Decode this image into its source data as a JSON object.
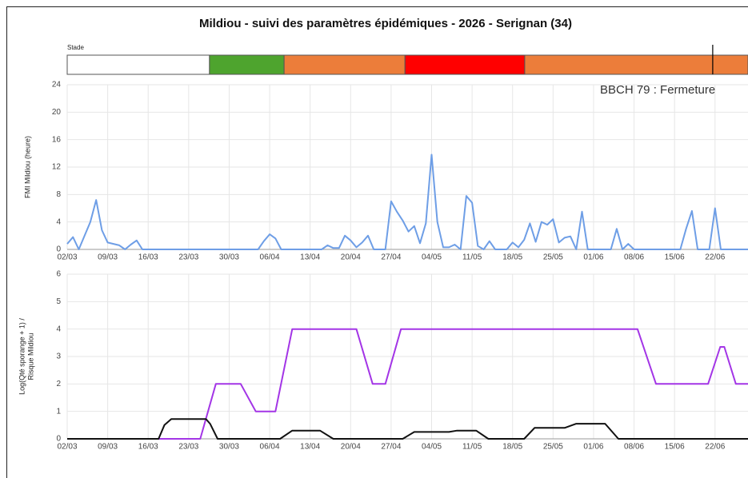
{
  "chart_data": [
    {
      "type": "stage",
      "title": "Mildiou - suivi des paramètres épidémiques - 2026 - Serignan (34)",
      "label": "Stade",
      "xlim": [
        0,
        117.7
      ],
      "segments": [
        {
          "start": 0,
          "end": 24.6,
          "color": "#ffffff"
        },
        {
          "start": 24.6,
          "end": 37.5,
          "color": "#4ea42e"
        },
        {
          "start": 37.5,
          "end": 58.4,
          "color": "#ec7d3a"
        },
        {
          "start": 58.4,
          "end": 79.1,
          "color": "#ff0000"
        },
        {
          "start": 79.1,
          "end": 117.7,
          "color": "#ec7d3a"
        }
      ],
      "marker": 111.6,
      "annotation": "BBCH 79 : Fermeture"
    },
    {
      "type": "line",
      "ylabel": "FMI Mildiou (heure)",
      "xlim": [
        0,
        117.7
      ],
      "ylim": [
        0,
        24
      ],
      "yticks": [
        0,
        4,
        8,
        12,
        16,
        20,
        24
      ],
      "grid": true,
      "xticks": [
        {
          "value": 0,
          "label": "02/03"
        },
        {
          "value": 7,
          "label": "09/03"
        },
        {
          "value": 14,
          "label": "16/03"
        },
        {
          "value": 21,
          "label": "23/03"
        },
        {
          "value": 28,
          "label": "30/03"
        },
        {
          "value": 35,
          "label": "06/04"
        },
        {
          "value": 42,
          "label": "13/04"
        },
        {
          "value": 49,
          "label": "20/04"
        },
        {
          "value": 56,
          "label": "27/04"
        },
        {
          "value": 63,
          "label": "04/05"
        },
        {
          "value": 70,
          "label": "11/05"
        },
        {
          "value": 77,
          "label": "18/05"
        },
        {
          "value": 84,
          "label": "25/05"
        },
        {
          "value": 91,
          "label": "01/06"
        },
        {
          "value": 98,
          "label": "08/06"
        },
        {
          "value": 105,
          "label": "15/06"
        },
        {
          "value": 112,
          "label": "22/06"
        }
      ],
      "series": [
        {
          "color": "#6e9ee6",
          "x": [
            0,
            1,
            2,
            4,
            5,
            6,
            7,
            8,
            9,
            10,
            11,
            12,
            13,
            33,
            34,
            35,
            36,
            37,
            44,
            45,
            46,
            47,
            48,
            49,
            50,
            51,
            52,
            53,
            55,
            56,
            57,
            58,
            59,
            60,
            61,
            62,
            63,
            64,
            65,
            66,
            67,
            68,
            69,
            70,
            71,
            72,
            73,
            74,
            76,
            77,
            78,
            79,
            80,
            81,
            82,
            83,
            84,
            85,
            86,
            87,
            88,
            89,
            90,
            94,
            95,
            96,
            97,
            98,
            106,
            107,
            108,
            109,
            111,
            112,
            113,
            117.7
          ],
          "values": [
            0.8,
            1.8,
            0,
            4,
            7.2,
            2.8,
            1,
            0.8,
            0.6,
            0,
            0.7,
            1.3,
            0,
            0,
            1.2,
            2.2,
            1.6,
            0,
            0,
            0.6,
            0.2,
            0.2,
            2,
            1.3,
            0.3,
            1,
            2,
            0,
            0,
            7,
            5.5,
            4.2,
            2.6,
            3.4,
            0.9,
            3.8,
            13.8,
            4,
            0.3,
            0.3,
            0.7,
            0,
            7.8,
            6.8,
            0.5,
            0,
            1.2,
            0,
            0,
            1,
            0.3,
            1.4,
            3.8,
            1.1,
            4,
            3.6,
            4.4,
            1,
            1.7,
            1.9,
            0,
            5.5,
            0,
            0,
            3,
            0,
            0.8,
            0,
            0,
            3,
            5.6,
            0,
            0,
            6,
            0,
            0
          ]
        }
      ]
    },
    {
      "type": "line",
      "ylabel": [
        "Log(Qté sporange + 1) /",
        "Risque Mildiou"
      ],
      "xlim": [
        0,
        117.7
      ],
      "ylim": [
        0,
        6
      ],
      "yticks": [
        0,
        1,
        2,
        3,
        4,
        5,
        6
      ],
      "grid": true,
      "xticks": [
        {
          "value": 0,
          "label": "02/03"
        },
        {
          "value": 7,
          "label": "09/03"
        },
        {
          "value": 14,
          "label": "16/03"
        },
        {
          "value": 21,
          "label": "23/03"
        },
        {
          "value": 28,
          "label": "30/03"
        },
        {
          "value": 35,
          "label": "06/04"
        },
        {
          "value": 42,
          "label": "13/04"
        },
        {
          "value": 49,
          "label": "20/04"
        },
        {
          "value": 56,
          "label": "27/04"
        },
        {
          "value": 63,
          "label": "04/05"
        },
        {
          "value": 70,
          "label": "11/05"
        },
        {
          "value": 77,
          "label": "18/05"
        },
        {
          "value": 84,
          "label": "25/05"
        },
        {
          "value": 91,
          "label": "01/06"
        },
        {
          "value": 98,
          "label": "08/06"
        },
        {
          "value": 105,
          "label": "15/06"
        },
        {
          "value": 112,
          "label": "22/06"
        }
      ],
      "series": [
        {
          "color": "#a335e6",
          "x": [
            0,
            23,
            25.7,
            30,
            32.6,
            36,
            38.9,
            50,
            52.8,
            55,
            57.7,
            98.6,
            101.8,
            110.8,
            112.9,
            113.6,
            115.6,
            117.7
          ],
          "values": [
            0,
            0,
            2,
            2,
            1,
            1,
            4,
            4,
            2,
            2,
            4,
            4,
            2,
            2,
            3.35,
            3.35,
            2,
            2
          ]
        },
        {
          "color": "#111111",
          "x": [
            0,
            15.8,
            16.8,
            18,
            24,
            24.7,
            26,
            36.8,
            38.9,
            43.7,
            46,
            58,
            60,
            66,
            67.4,
            70.7,
            72.8,
            79,
            80.8,
            86,
            88,
            93,
            95.3,
            117.7
          ],
          "values": [
            0,
            0,
            0.5,
            0.72,
            0.72,
            0.55,
            0,
            0,
            0.3,
            0.3,
            0,
            0,
            0.25,
            0.25,
            0.3,
            0.3,
            0,
            0,
            0.4,
            0.4,
            0.55,
            0.55,
            0,
            0
          ]
        }
      ]
    }
  ]
}
